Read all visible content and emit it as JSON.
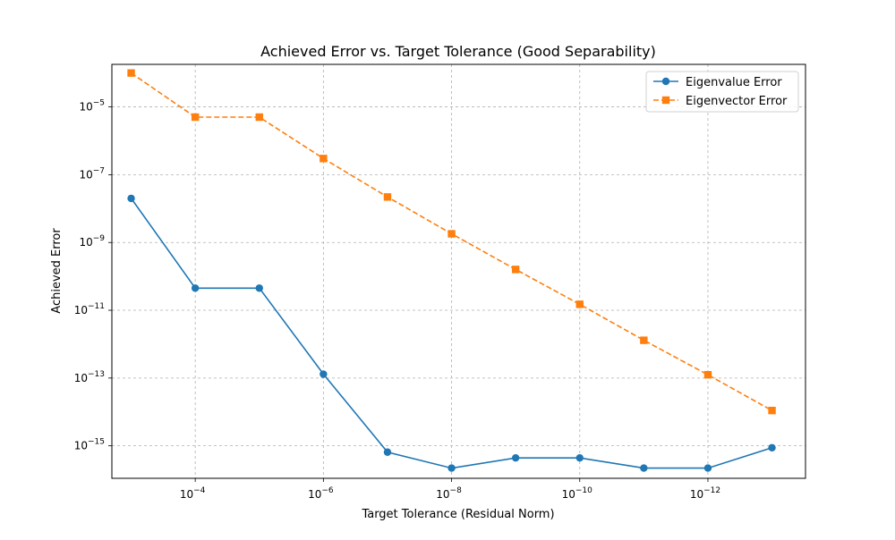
{
  "chart_data": {
    "type": "line",
    "title": "Achieved Error vs. Target Tolerance (Good Separability)",
    "xlabel": "Target Tolerance (Residual Norm)",
    "ylabel": "Achieved Error",
    "x_scale": "log",
    "y_scale": "log",
    "x_reversed": true,
    "grid": true,
    "legend_position": "top-right",
    "xlim": [
      0.002,
      3e-14
    ],
    "ylim": [
      1.1e-16,
      0.00018
    ],
    "x_ticks": [
      {
        "value": 0.0001,
        "base": "10",
        "exp": "−4"
      },
      {
        "value": 1e-06,
        "base": "10",
        "exp": "−6"
      },
      {
        "value": 1e-08,
        "base": "10",
        "exp": "−8"
      },
      {
        "value": 1e-10,
        "base": "10",
        "exp": "−10"
      },
      {
        "value": 1e-12,
        "base": "10",
        "exp": "−12"
      }
    ],
    "y_ticks": [
      {
        "value": 1e-05,
        "base": "10",
        "exp": "−5"
      },
      {
        "value": 1e-07,
        "base": "10",
        "exp": "−7"
      },
      {
        "value": 1e-09,
        "base": "10",
        "exp": "−9"
      },
      {
        "value": 1e-11,
        "base": "10",
        "exp": "−11"
      },
      {
        "value": 1e-13,
        "base": "10",
        "exp": "−13"
      },
      {
        "value": 1e-15,
        "base": "10",
        "exp": "−15"
      }
    ],
    "x": [
      0.001,
      0.0001,
      1e-05,
      1e-06,
      1e-07,
      1e-08,
      1e-09,
      1e-10,
      1e-11,
      1e-12,
      1e-13
    ],
    "series": [
      {
        "name": "Eigenvalue Error",
        "color": "#1f77b4",
        "marker": "circle",
        "linestyle": "solid",
        "values": [
          2e-08,
          4.5e-11,
          4.5e-11,
          1.3e-13,
          6.5e-16,
          2.2e-16,
          4.4e-16,
          4.4e-16,
          2.2e-16,
          2.2e-16,
          8.8e-16
        ]
      },
      {
        "name": "Eigenvector Error",
        "color": "#ff7f0e",
        "marker": "square",
        "linestyle": "dashed",
        "values": [
          0.0001,
          5e-06,
          5e-06,
          3e-07,
          2.2e-08,
          1.8e-09,
          1.6e-10,
          1.5e-11,
          1.3e-12,
          1.25e-13,
          1.1e-14
        ]
      }
    ]
  }
}
